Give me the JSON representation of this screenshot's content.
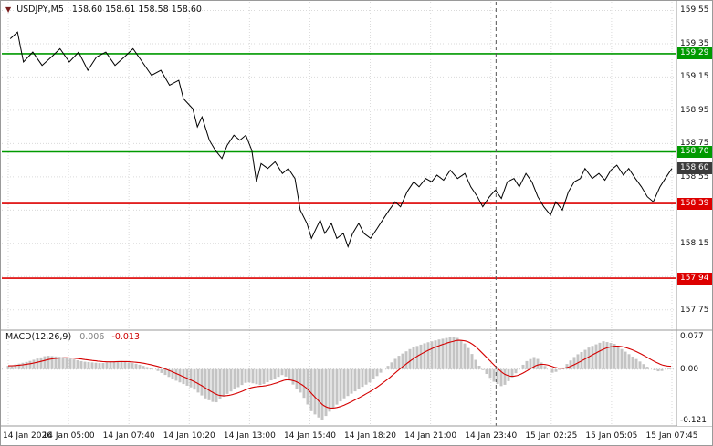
{
  "header": {
    "icon": "▼",
    "symbol_period": "USDJPY,M5",
    "ohlc": "158.60 158.61 158.58 158.60"
  },
  "chart_data": {
    "type": "line",
    "title": "USDJPY,M5",
    "x_labels": [
      "14 Jan 2026",
      "14 Jan 05:00",
      "14 Jan 07:40",
      "14 Jan 10:20",
      "14 Jan 13:00",
      "14 Jan 15:40",
      "14 Jan 18:20",
      "14 Jan 21:00",
      "14 Jan 23:40",
      "15 Jan 02:25",
      "15 Jan 05:05",
      "15 Jan 07:45"
    ],
    "day_separator_frac": 0.735,
    "main": {
      "ylim": [
        157.65,
        159.58
      ],
      "grid_levels": [
        159.55,
        159.35,
        159.15,
        158.95,
        158.75,
        158.55,
        158.35,
        158.15,
        157.95,
        157.75
      ],
      "axis_ticks": [
        159.55,
        159.35,
        159.15,
        158.95,
        158.75,
        158.55,
        158.15,
        157.75
      ],
      "levels": [
        {
          "value": 159.29,
          "color": "#009a00",
          "role": "resistance"
        },
        {
          "value": 158.7,
          "color": "#009a00",
          "role": "resistance"
        },
        {
          "value": 158.39,
          "color": "#dd0000",
          "role": "support"
        },
        {
          "value": 157.94,
          "color": "#dd0000",
          "role": "support"
        }
      ],
      "current_price": {
        "value": 158.6,
        "bg": "#3c3c3c"
      },
      "price_points": [
        [
          0.003,
          159.38
        ],
        [
          0.014,
          159.42
        ],
        [
          0.023,
          159.24
        ],
        [
          0.037,
          159.3
        ],
        [
          0.051,
          159.22
        ],
        [
          0.065,
          159.27
        ],
        [
          0.078,
          159.32
        ],
        [
          0.092,
          159.24
        ],
        [
          0.106,
          159.3
        ],
        [
          0.12,
          159.19
        ],
        [
          0.133,
          159.27
        ],
        [
          0.147,
          159.3
        ],
        [
          0.161,
          159.22
        ],
        [
          0.175,
          159.27
        ],
        [
          0.188,
          159.32
        ],
        [
          0.202,
          159.24
        ],
        [
          0.216,
          159.16
        ],
        [
          0.23,
          159.19
        ],
        [
          0.243,
          159.1
        ],
        [
          0.257,
          159.13
        ],
        [
          0.264,
          159.02
        ],
        [
          0.278,
          158.96
        ],
        [
          0.285,
          158.85
        ],
        [
          0.292,
          158.91
        ],
        [
          0.303,
          158.77
        ],
        [
          0.312,
          158.71
        ],
        [
          0.322,
          158.66
        ],
        [
          0.33,
          158.74
        ],
        [
          0.34,
          158.8
        ],
        [
          0.349,
          158.77
        ],
        [
          0.358,
          158.8
        ],
        [
          0.367,
          158.71
        ],
        [
          0.374,
          158.52
        ],
        [
          0.381,
          158.63
        ],
        [
          0.391,
          158.6
        ],
        [
          0.402,
          158.64
        ],
        [
          0.413,
          158.57
        ],
        [
          0.422,
          158.6
        ],
        [
          0.432,
          158.54
        ],
        [
          0.44,
          158.35
        ],
        [
          0.45,
          158.27
        ],
        [
          0.457,
          158.18
        ],
        [
          0.464,
          158.24
        ],
        [
          0.47,
          158.29
        ],
        [
          0.477,
          158.21
        ],
        [
          0.487,
          158.27
        ],
        [
          0.495,
          158.18
        ],
        [
          0.505,
          158.21
        ],
        [
          0.512,
          158.13
        ],
        [
          0.519,
          158.21
        ],
        [
          0.528,
          158.27
        ],
        [
          0.536,
          158.21
        ],
        [
          0.546,
          158.18
        ],
        [
          0.556,
          158.24
        ],
        [
          0.564,
          158.29
        ],
        [
          0.574,
          158.35
        ],
        [
          0.583,
          158.4
        ],
        [
          0.591,
          158.37
        ],
        [
          0.601,
          158.46
        ],
        [
          0.611,
          158.52
        ],
        [
          0.619,
          158.49
        ],
        [
          0.629,
          158.54
        ],
        [
          0.638,
          158.52
        ],
        [
          0.646,
          158.56
        ],
        [
          0.656,
          158.53
        ],
        [
          0.666,
          158.59
        ],
        [
          0.677,
          158.54
        ],
        [
          0.688,
          158.57
        ],
        [
          0.697,
          158.49
        ],
        [
          0.707,
          158.43
        ],
        [
          0.715,
          158.37
        ],
        [
          0.725,
          158.43
        ],
        [
          0.734,
          158.47
        ],
        [
          0.743,
          158.42
        ],
        [
          0.752,
          158.52
        ],
        [
          0.762,
          158.54
        ],
        [
          0.77,
          158.49
        ],
        [
          0.78,
          158.57
        ],
        [
          0.789,
          158.52
        ],
        [
          0.798,
          158.43
        ],
        [
          0.807,
          158.37
        ],
        [
          0.817,
          158.32
        ],
        [
          0.825,
          158.4
        ],
        [
          0.835,
          158.35
        ],
        [
          0.844,
          158.46
        ],
        [
          0.853,
          158.52
        ],
        [
          0.862,
          158.54
        ],
        [
          0.869,
          158.6
        ],
        [
          0.88,
          158.54
        ],
        [
          0.89,
          158.57
        ],
        [
          0.899,
          158.53
        ],
        [
          0.908,
          158.59
        ],
        [
          0.917,
          158.62
        ],
        [
          0.927,
          158.56
        ],
        [
          0.935,
          158.6
        ],
        [
          0.945,
          158.54
        ],
        [
          0.954,
          158.49
        ],
        [
          0.963,
          158.43
        ],
        [
          0.972,
          158.4
        ],
        [
          0.982,
          158.49
        ],
        [
          0.99,
          158.54
        ],
        [
          1.0,
          158.6
        ]
      ]
    },
    "macd": {
      "label": "MACD(12,26,9)",
      "value_main": "0.006",
      "value_signal": "-0.013",
      "y_max": 0.077,
      "y_min": -0.121,
      "axis_ticks": [
        "0.077",
        "0.00",
        "-0.121"
      ],
      "histogram_color": "#c4c4c4",
      "signal_color": "#d40000",
      "points": [
        [
          0.003,
          0.008
        ],
        [
          0.03,
          0.018
        ],
        [
          0.058,
          0.032
        ],
        [
          0.085,
          0.028
        ],
        [
          0.113,
          0.018
        ],
        [
          0.14,
          0.014
        ],
        [
          0.168,
          0.02
        ],
        [
          0.195,
          0.012
        ],
        [
          0.223,
          -0.002
        ],
        [
          0.25,
          -0.025
        ],
        [
          0.278,
          -0.045
        ],
        [
          0.298,
          -0.07
        ],
        [
          0.312,
          -0.08
        ],
        [
          0.333,
          -0.055
        ],
        [
          0.36,
          -0.03
        ],
        [
          0.381,
          -0.038
        ],
        [
          0.402,
          -0.022
        ],
        [
          0.415,
          -0.012
        ],
        [
          0.443,
          -0.06
        ],
        [
          0.457,
          -0.1
        ],
        [
          0.473,
          -0.121
        ],
        [
          0.487,
          -0.095
        ],
        [
          0.505,
          -0.07
        ],
        [
          0.525,
          -0.05
        ],
        [
          0.546,
          -0.03
        ],
        [
          0.567,
          0.0
        ],
        [
          0.587,
          0.03
        ],
        [
          0.608,
          0.05
        ],
        [
          0.629,
          0.062
        ],
        [
          0.649,
          0.07
        ],
        [
          0.665,
          0.075
        ],
        [
          0.674,
          0.077
        ],
        [
          0.69,
          0.058
        ],
        [
          0.711,
          0.005
        ],
        [
          0.732,
          -0.03
        ],
        [
          0.745,
          -0.042
        ],
        [
          0.759,
          -0.02
        ],
        [
          0.78,
          0.018
        ],
        [
          0.794,
          0.03
        ],
        [
          0.807,
          0.01
        ],
        [
          0.821,
          -0.01
        ],
        [
          0.835,
          0.002
        ],
        [
          0.855,
          0.032
        ],
        [
          0.876,
          0.052
        ],
        [
          0.897,
          0.066
        ],
        [
          0.913,
          0.06
        ],
        [
          0.931,
          0.04
        ],
        [
          0.952,
          0.018
        ],
        [
          0.968,
          0.0
        ],
        [
          0.982,
          -0.006
        ],
        [
          1.0,
          0.006
        ]
      ]
    }
  }
}
